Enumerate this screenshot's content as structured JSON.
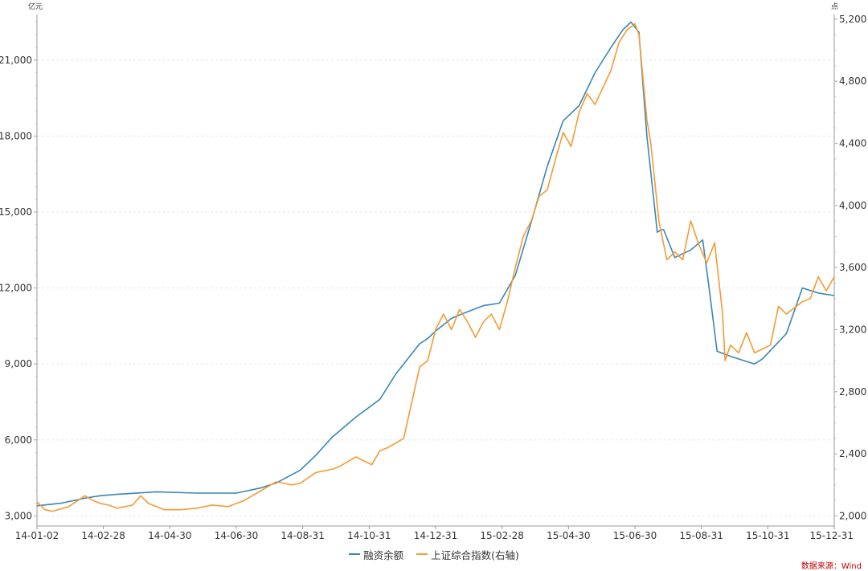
{
  "chart_data": {
    "type": "line",
    "left_axis": {
      "unit": "亿元",
      "ticks": [
        3000,
        6000,
        9000,
        12000,
        15000,
        18000,
        21000
      ],
      "tick_labels": [
        "3,000",
        "6,000",
        "9,000",
        "12,000",
        "15,000",
        "18,000",
        "21,000"
      ],
      "range": [
        2600,
        22800
      ]
    },
    "right_axis": {
      "unit": "点",
      "ticks": [
        2000,
        2400,
        2800,
        3200,
        3600,
        4000,
        4400,
        4800,
        5200
      ],
      "tick_labels": [
        "2,000",
        "2,400",
        "2,800",
        "3,200",
        "3,600",
        "4,000",
        "4,400",
        "4,800",
        "5,200"
      ],
      "range": [
        1935,
        5230
      ]
    },
    "x_labels": [
      "14-01-02",
      "14-02-28",
      "14-04-30",
      "14-06-30",
      "14-08-31",
      "14-10-31",
      "14-12-31",
      "15-02-28",
      "15-04-30",
      "15-06-30",
      "15-08-31",
      "15-10-31",
      "15-12-31"
    ],
    "grid": true,
    "legend_position": "bottom",
    "series": [
      {
        "name": "融资余额",
        "axis": "left",
        "color": "#3a87b4",
        "x": [
          0,
          0.03,
          0.06,
          0.08,
          0.1,
          0.15,
          0.2,
          0.25,
          0.28,
          0.3,
          0.33,
          0.35,
          0.37,
          0.4,
          0.43,
          0.45,
          0.47,
          0.48,
          0.49,
          0.5,
          0.52,
          0.535,
          0.56,
          0.58,
          0.6,
          0.62,
          0.64,
          0.66,
          0.68,
          0.7,
          0.72,
          0.735,
          0.745,
          0.755,
          0.765,
          0.778,
          0.783,
          0.786,
          0.8,
          0.82,
          0.835,
          0.843,
          0.853,
          0.87,
          0.9,
          0.91,
          0.94,
          0.96,
          0.98,
          1.0
        ],
        "y": [
          3400,
          3500,
          3700,
          3800,
          3850,
          3950,
          3900,
          3900,
          4100,
          4300,
          4800,
          5400,
          6100,
          6900,
          7600,
          8600,
          9400,
          9800,
          10000,
          10300,
          10800,
          11000,
          11300,
          11400,
          12500,
          14600,
          16800,
          18600,
          19200,
          20500,
          21500,
          22200,
          22500,
          22100,
          18000,
          14200,
          14300,
          14300,
          13200,
          13500,
          13900,
          12000,
          9500,
          9300,
          9000,
          9200,
          10200,
          12000,
          11800,
          11700
        ]
      },
      {
        "name": "上证综合指数(右轴)",
        "axis": "right",
        "color": "#f49b34",
        "x": [
          0,
          0.01,
          0.02,
          0.04,
          0.06,
          0.07,
          0.08,
          0.09,
          0.1,
          0.12,
          0.13,
          0.14,
          0.16,
          0.18,
          0.2,
          0.22,
          0.24,
          0.26,
          0.28,
          0.3,
          0.32,
          0.33,
          0.35,
          0.37,
          0.38,
          0.4,
          0.42,
          0.43,
          0.44,
          0.46,
          0.48,
          0.49,
          0.5,
          0.51,
          0.52,
          0.53,
          0.54,
          0.55,
          0.56,
          0.57,
          0.58,
          0.59,
          0.6,
          0.61,
          0.62,
          0.63,
          0.64,
          0.65,
          0.66,
          0.67,
          0.68,
          0.69,
          0.7,
          0.71,
          0.72,
          0.73,
          0.74,
          0.75,
          0.755,
          0.765,
          0.77,
          0.78,
          0.79,
          0.8,
          0.81,
          0.82,
          0.83,
          0.84,
          0.85,
          0.86,
          0.863,
          0.87,
          0.88,
          0.89,
          0.9,
          0.92,
          0.93,
          0.94,
          0.96,
          0.97,
          0.98,
          0.99,
          1.0
        ],
        "y": [
          2090,
          2040,
          2030,
          2060,
          2130,
          2100,
          2080,
          2070,
          2050,
          2070,
          2130,
          2080,
          2040,
          2040,
          2050,
          2070,
          2060,
          2100,
          2160,
          2220,
          2200,
          2210,
          2280,
          2300,
          2320,
          2380,
          2330,
          2420,
          2440,
          2500,
          2960,
          3000,
          3200,
          3300,
          3200,
          3330,
          3250,
          3150,
          3250,
          3300,
          3200,
          3380,
          3600,
          3800,
          3900,
          4060,
          4100,
          4290,
          4470,
          4380,
          4600,
          4720,
          4650,
          4760,
          4870,
          5050,
          5130,
          5170,
          5100,
          4550,
          4400,
          3900,
          3650,
          3700,
          3650,
          3900,
          3750,
          3630,
          3760,
          3300,
          3000,
          3100,
          3050,
          3180,
          3050,
          3100,
          3350,
          3300,
          3380,
          3400,
          3540,
          3450,
          3540
        ]
      }
    ],
    "annotations": [
      "数据来源：Wind"
    ]
  }
}
